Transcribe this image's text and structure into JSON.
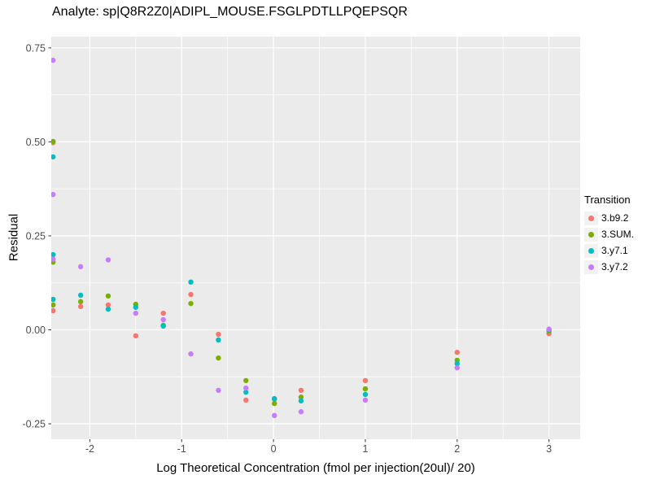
{
  "title": "Analyte: sp|Q8R2Z0|ADIPL_MOUSE.FSGLPDTLLPQEPSQR",
  "chart_data": {
    "type": "scatter",
    "title": "Analyte: sp|Q8R2Z0|ADIPL_MOUSE.FSGLPDTLLPQEPSQR",
    "xlabel": "Log Theoretical Concentration (fmol per injection(20ul)/ 20)",
    "ylabel": "Residual",
    "xlim": [
      -2.42,
      3.34
    ],
    "ylim": [
      -0.291,
      0.78
    ],
    "grid": true,
    "legend_position": "right",
    "legend_title": "Transition",
    "panel_bg": "#EBEBEB",
    "grid_color": "#FFFFFF",
    "tick_text_color": "#4D4D4D",
    "tick_mark_color": "#333333",
    "x_major_ticks": [
      -2,
      -1,
      0,
      1,
      2,
      3
    ],
    "x_tick_labels": [
      "-2",
      "-1",
      "0",
      "1",
      "2",
      "3"
    ],
    "x_minor_ticks": [
      -1.5,
      -0.5,
      0.5,
      1.5,
      2.5
    ],
    "y_major_ticks": [
      0.75,
      0.5,
      0.25,
      0,
      -0.25
    ],
    "y_tick_labels": [
      "0.75",
      "0.50",
      "0.25",
      "0.00",
      "-0.25"
    ],
    "y_minor_ticks": [
      0.625,
      0.375,
      0.125,
      -0.125
    ],
    "series": [
      {
        "name": "3.b9.2",
        "color": "#F8766D",
        "points": [
          [
            -2.4,
            0.498
          ],
          [
            -2.4,
            0.051
          ],
          [
            -2.1,
            0.062
          ],
          [
            -1.8,
            0.066
          ],
          [
            -1.5,
            -0.016
          ],
          [
            -1.2,
            0.044
          ],
          [
            -0.9,
            0.094
          ],
          [
            -0.6,
            -0.012
          ],
          [
            -0.3,
            -0.187
          ],
          [
            0.01,
            -0.185
          ],
          [
            0.3,
            -0.161
          ],
          [
            1,
            -0.135
          ],
          [
            2,
            -0.06
          ],
          [
            3,
            -0.01
          ]
        ]
      },
      {
        "name": "3.SUM.",
        "color": "#7CAE00",
        "points": [
          [
            -2.4,
            0.501
          ],
          [
            -2.4,
            0.18
          ],
          [
            -2.4,
            0.066
          ],
          [
            -2.1,
            0.075
          ],
          [
            -1.8,
            0.09
          ],
          [
            -1.5,
            0.068
          ],
          [
            -1.2,
            0.012
          ],
          [
            -0.9,
            0.07
          ],
          [
            -0.6,
            -0.075
          ],
          [
            -0.3,
            -0.135
          ],
          [
            0.01,
            -0.196
          ],
          [
            0.3,
            -0.179
          ],
          [
            1,
            -0.157
          ],
          [
            2,
            -0.081
          ],
          [
            3,
            -0.004
          ]
        ]
      },
      {
        "name": "3.y7.1",
        "color": "#00BFC4",
        "points": [
          [
            -2.4,
            0.46
          ],
          [
            -2.4,
            0.2
          ],
          [
            -2.4,
            0.081
          ],
          [
            -2.1,
            0.092
          ],
          [
            -1.8,
            0.055
          ],
          [
            -1.5,
            0.06
          ],
          [
            -1.2,
            0.01
          ],
          [
            -0.9,
            0.127
          ],
          [
            -0.6,
            -0.027
          ],
          [
            -0.3,
            -0.166
          ],
          [
            0.01,
            -0.183
          ],
          [
            0.3,
            -0.189
          ],
          [
            1,
            -0.172
          ],
          [
            2,
            -0.09
          ],
          [
            3,
            0.0
          ]
        ]
      },
      {
        "name": "3.y7.2",
        "color": "#C77CFF",
        "points": [
          [
            -2.4,
            0.717
          ],
          [
            -2.4,
            0.36
          ],
          [
            -2.4,
            0.188
          ],
          [
            -2.1,
            0.168
          ],
          [
            -1.8,
            0.186
          ],
          [
            -1.5,
            0.044
          ],
          [
            -1.2,
            0.027
          ],
          [
            -0.9,
            -0.064
          ],
          [
            -0.6,
            -0.161
          ],
          [
            -0.3,
            -0.155
          ],
          [
            0.01,
            -0.228
          ],
          [
            0.3,
            -0.218
          ],
          [
            1,
            -0.187
          ],
          [
            2,
            -0.101
          ],
          [
            3,
            0.002
          ]
        ]
      }
    ]
  }
}
